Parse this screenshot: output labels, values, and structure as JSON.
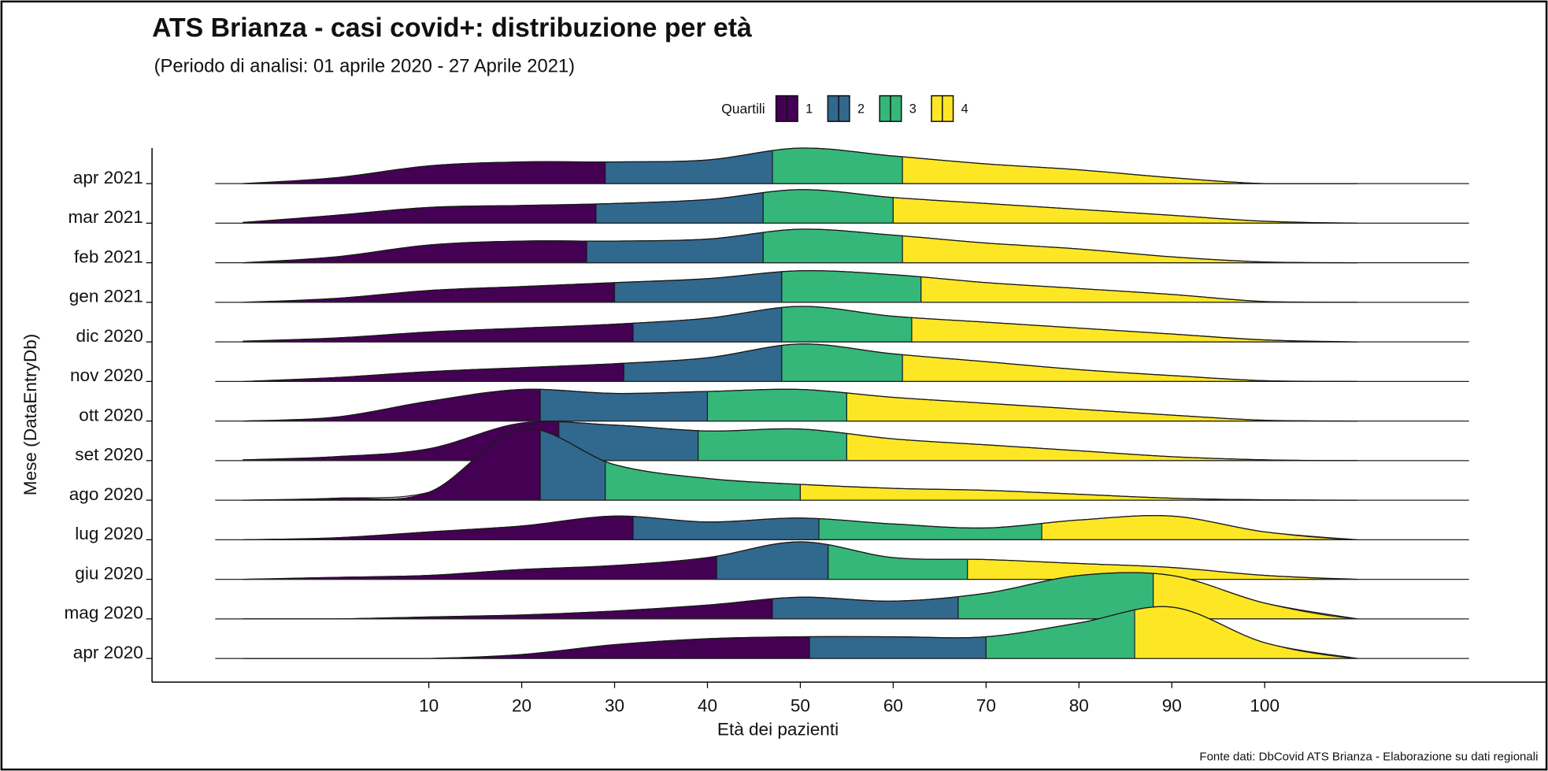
{
  "chart_data": {
    "type": "ridgeline",
    "title": "ATS Brianza - casi covid+: distribuzione per età",
    "subtitle": "(Periodo di analisi: 01 aprile 2020 - 27 Aprile 2021)",
    "xlabel": "Età dei pazienti",
    "ylabel": "Mese (DataEntryDb)",
    "caption": "Fonte dati: DbCovid ATS Brianza - Elaborazione su dati regionali",
    "legend_title": "Quartili",
    "quartile_labels": [
      "1",
      "2",
      "3",
      "4"
    ],
    "quartile_colors": [
      "#440154",
      "#31688e",
      "#35b779",
      "#fde725"
    ],
    "xlim": [
      -13,
      122
    ],
    "xticks": [
      10,
      20,
      30,
      40,
      50,
      60,
      70,
      80,
      90,
      100
    ],
    "x": [
      -10,
      0,
      10,
      20,
      30,
      40,
      50,
      60,
      70,
      80,
      90,
      100,
      110
    ],
    "series": [
      {
        "name": "apr 2021",
        "quartiles": [
          29,
          47,
          61
        ],
        "values": [
          0,
          0.15,
          0.45,
          0.55,
          0.55,
          0.6,
          0.9,
          0.7,
          0.5,
          0.35,
          0.15,
          0,
          0
        ]
      },
      {
        "name": "mar 2021",
        "quartiles": [
          28,
          46,
          60
        ],
        "values": [
          0.02,
          0.2,
          0.4,
          0.45,
          0.5,
          0.6,
          0.85,
          0.65,
          0.5,
          0.35,
          0.2,
          0.05,
          0
        ]
      },
      {
        "name": "feb 2021",
        "quartiles": [
          27,
          46,
          61
        ],
        "values": [
          0,
          0.15,
          0.45,
          0.55,
          0.55,
          0.6,
          0.85,
          0.7,
          0.5,
          0.35,
          0.15,
          0.02,
          0
        ]
      },
      {
        "name": "gen 2021",
        "quartiles": [
          30,
          48,
          63
        ],
        "values": [
          0,
          0.1,
          0.3,
          0.4,
          0.5,
          0.6,
          0.8,
          0.7,
          0.5,
          0.35,
          0.2,
          0.02,
          0
        ]
      },
      {
        "name": "dic 2020",
        "quartiles": [
          32,
          48,
          62
        ],
        "values": [
          0.02,
          0.1,
          0.25,
          0.35,
          0.45,
          0.6,
          0.9,
          0.65,
          0.5,
          0.35,
          0.2,
          0.05,
          0
        ]
      },
      {
        "name": "nov 2020",
        "quartiles": [
          31,
          48,
          61
        ],
        "values": [
          0,
          0.1,
          0.25,
          0.35,
          0.45,
          0.6,
          0.95,
          0.7,
          0.5,
          0.3,
          0.15,
          0.02,
          0
        ]
      },
      {
        "name": "ott 2020",
        "quartiles": [
          22,
          40,
          55
        ],
        "values": [
          0,
          0.1,
          0.5,
          0.8,
          0.7,
          0.75,
          0.8,
          0.6,
          0.45,
          0.3,
          0.15,
          0.02,
          0
        ]
      },
      {
        "name": "set 2020",
        "quartiles": [
          24,
          39,
          55
        ],
        "values": [
          0.02,
          0.1,
          0.3,
          0.95,
          0.9,
          0.75,
          0.8,
          0.55,
          0.4,
          0.25,
          0.1,
          0.02,
          0
        ]
      },
      {
        "name": "ago 2020",
        "quartiles": [
          22,
          29,
          50
        ],
        "values": [
          0,
          0.05,
          0.2,
          1.8,
          0.9,
          0.55,
          0.4,
          0.3,
          0.25,
          0.15,
          0.05,
          0.01,
          0
        ]
      },
      {
        "name": "lug 2020",
        "quartiles": [
          32,
          52,
          76
        ],
        "values": [
          0,
          0.05,
          0.2,
          0.35,
          0.6,
          0.45,
          0.55,
          0.4,
          0.3,
          0.5,
          0.6,
          0.2,
          0
        ]
      },
      {
        "name": "giu 2020",
        "quartiles": [
          41,
          53,
          68
        ],
        "values": [
          0,
          0.05,
          0.1,
          0.25,
          0.35,
          0.55,
          0.95,
          0.55,
          0.5,
          0.4,
          0.3,
          0.1,
          0
        ]
      },
      {
        "name": "mag 2020",
        "quartiles": [
          47,
          67,
          88
        ],
        "values": [
          0,
          0,
          0.05,
          0.1,
          0.2,
          0.35,
          0.55,
          0.45,
          0.65,
          1.1,
          1.1,
          0.4,
          0
        ]
      },
      {
        "name": "apr 2020",
        "quartiles": [
          51,
          70,
          86
        ],
        "values": [
          0,
          0,
          0,
          0.1,
          0.35,
          0.5,
          0.55,
          0.55,
          0.55,
          0.9,
          1.3,
          0.4,
          0
        ]
      }
    ]
  }
}
